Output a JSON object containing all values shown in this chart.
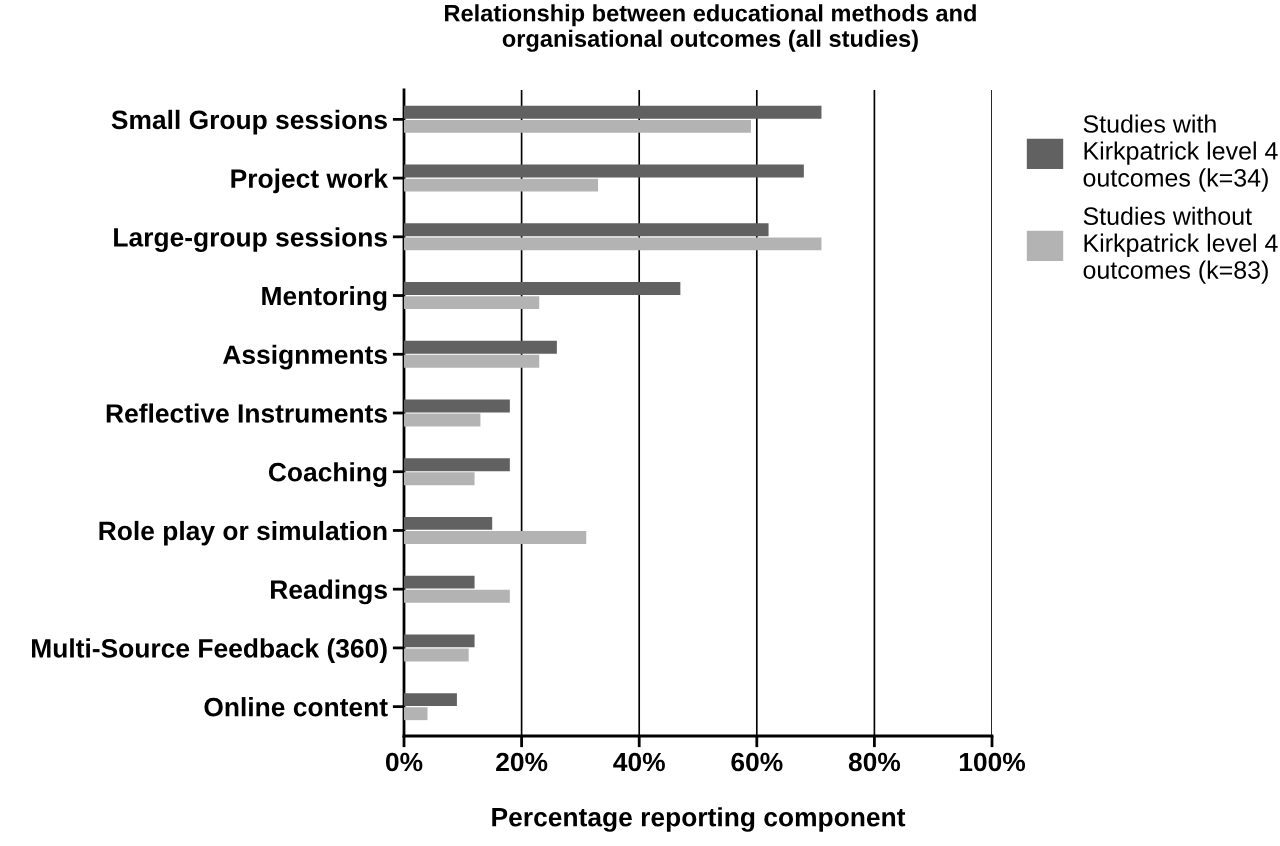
{
  "chart_data": {
    "type": "bar",
    "orientation": "horizontal",
    "title": "Relationship between educational methods and\norganisational outcomes (all studies)",
    "xlabel": "Percentage reporting component",
    "categories": [
      "Small Group sessions",
      "Project work",
      "Large-group sessions",
      "Mentoring",
      "Assignments",
      "Reflective Instruments",
      "Coaching",
      "Role play or simulation",
      "Readings",
      "Multi-Source Feedback (360)",
      "Online content"
    ],
    "series": [
      {
        "name": "Studies with\nKirkpatrick level 4\noutcomes (k=34)",
        "color": "#616161",
        "values": [
          71,
          68,
          62,
          47,
          26,
          18,
          18,
          15,
          12,
          12,
          9
        ]
      },
      {
        "name": "Studies without\nKirkpatrick level 4\noutcomes (k=83)",
        "color": "#b3b3b3",
        "values": [
          59,
          33,
          71,
          23,
          23,
          13,
          12,
          31,
          18,
          11,
          4
        ]
      }
    ],
    "xlim": [
      0,
      100
    ],
    "xticks": [
      {
        "value": 0,
        "label": "0%"
      },
      {
        "value": 20,
        "label": "20%"
      },
      {
        "value": 40,
        "label": "40%"
      },
      {
        "value": 60,
        "label": "60%"
      },
      {
        "value": 80,
        "label": "80%"
      },
      {
        "value": 100,
        "label": "100%"
      }
    ],
    "grid": "x",
    "legend": "top right"
  }
}
